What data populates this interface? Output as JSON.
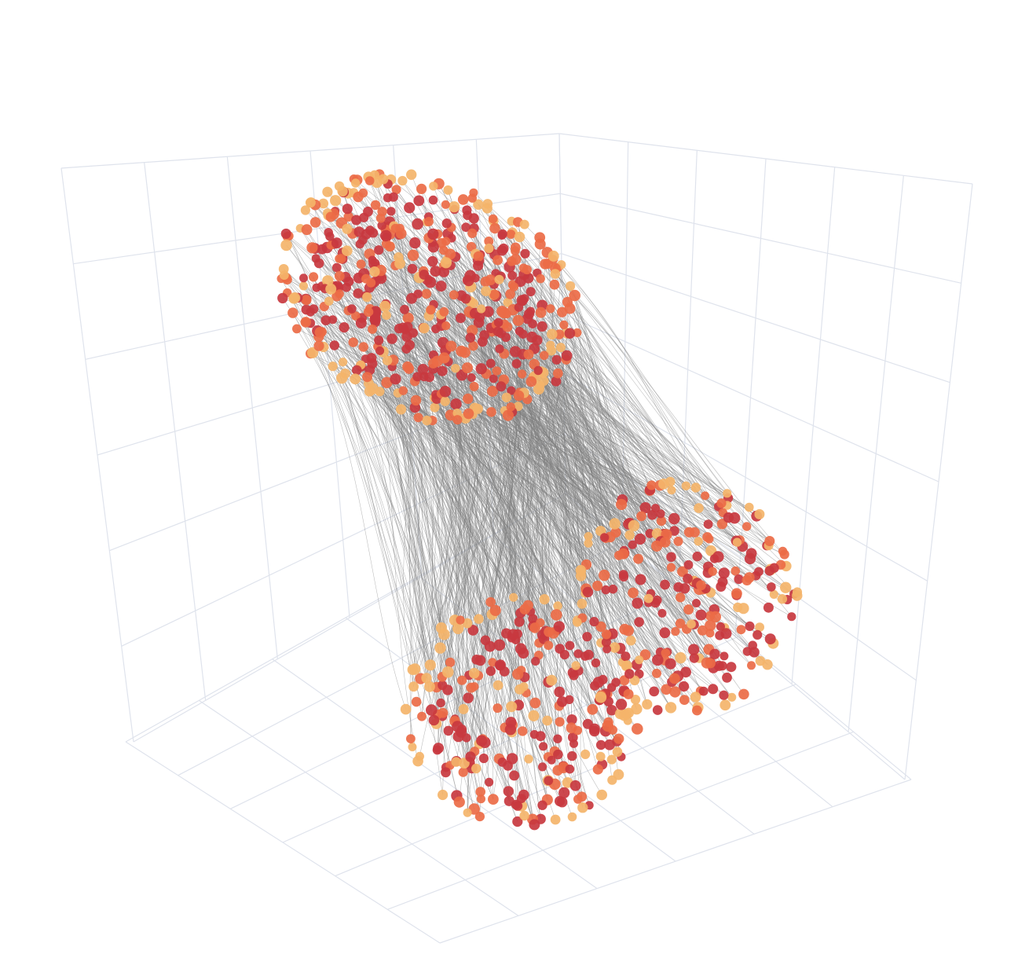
{
  "chart_data": {
    "type": "scatter",
    "subtype": "3d-scatter-with-connecting-lines",
    "title": "",
    "xlabel": "",
    "ylabel": "",
    "zlabel": "",
    "axis_tick_labels_visible": false,
    "grid": true,
    "legend": "none",
    "colors": {
      "grid": "#dfe3ec",
      "line": "#7f7f7f",
      "marker_dark": "#c8383f",
      "marker_mid": "#ec6b47",
      "marker_light": "#f4b46a"
    },
    "series": [
      {
        "name": "",
        "role": "upper cluster of points",
        "approx_point_count": 520
      },
      {
        "name": "",
        "role": "lower cluster of points",
        "approx_point_count": 520
      },
      {
        "name": "",
        "role": "lines connecting upper points to lower points",
        "approx_line_count": 900
      }
    ]
  }
}
